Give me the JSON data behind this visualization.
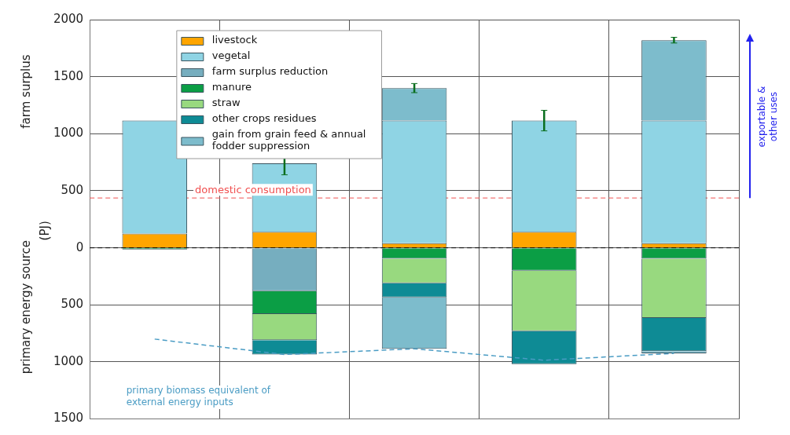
{
  "chart_data": {
    "type": "bar",
    "stacked": true,
    "ylabel": "(PJ)",
    "categories": [
      null,
      null,
      null,
      null,
      null
    ],
    "series": [
      {
        "name": "livestock",
        "color": "#ffa500",
        "values": [
          125,
          140,
          40,
          140,
          40
        ]
      },
      {
        "name": "vegetal",
        "color": "#8fd4e4",
        "values": [
          990,
          600,
          1075,
          975,
          1075
        ],
        "errors": [
          null,
          100,
          null,
          90,
          null
        ]
      },
      {
        "name": "farm surplus reduction",
        "color": "#76aebf",
        "values": [
          null,
          -380,
          null,
          null,
          null
        ]
      },
      {
        "name": "manure",
        "color": "#0b9e45",
        "values": [
          -15,
          -200,
          -95,
          -200,
          -95
        ]
      },
      {
        "name": "straw",
        "color": "#98d97f",
        "values": [
          null,
          -230,
          -215,
          -530,
          -520
        ]
      },
      {
        "name": "other crops residues",
        "color": "#0e8b95",
        "values": [
          null,
          -125,
          -125,
          -290,
          -290
        ]
      },
      {
        "name": "gain from grain feed & annual fodder suppression",
        "color": "#7dbccc",
        "values": [
          null,
          null,
          285,
          null,
          705
        ],
        "errors": [
          null,
          null,
          40,
          null,
          25
        ]
      },
      {
        "color": "#7dbccc",
        "values": [
          null,
          null,
          -450,
          null,
          -20
        ]
      },
      {
        "type": "line",
        "name": "primary biomass equivalent of external energy inputs",
        "color": "#4a9cc4",
        "line_style": "dashed",
        "marker": "none",
        "values": [
          -800,
          -935,
          -885,
          -985,
          -925
        ]
      }
    ],
    "ylim": [
      -1500,
      2000
    ],
    "yticks": [
      {
        "value": -1500,
        "label": "1500"
      },
      {
        "value": -1000,
        "label": "1000"
      },
      {
        "value": -500,
        "label": "500"
      },
      0,
      500,
      1000,
      1500,
      2000
    ],
    "ref_lines": [
      {
        "axis": "y",
        "value": 437,
        "label": "domestic consumption",
        "color": "#f05050",
        "line_style": "dashed"
      },
      {
        "axis": "y",
        "value": 0,
        "color": "#000000",
        "line_style": "dashed"
      }
    ],
    "annotations": [
      "farm surplus",
      "primary energy source",
      "exportable & other uses"
    ],
    "grid": true,
    "legend": "top left"
  }
}
